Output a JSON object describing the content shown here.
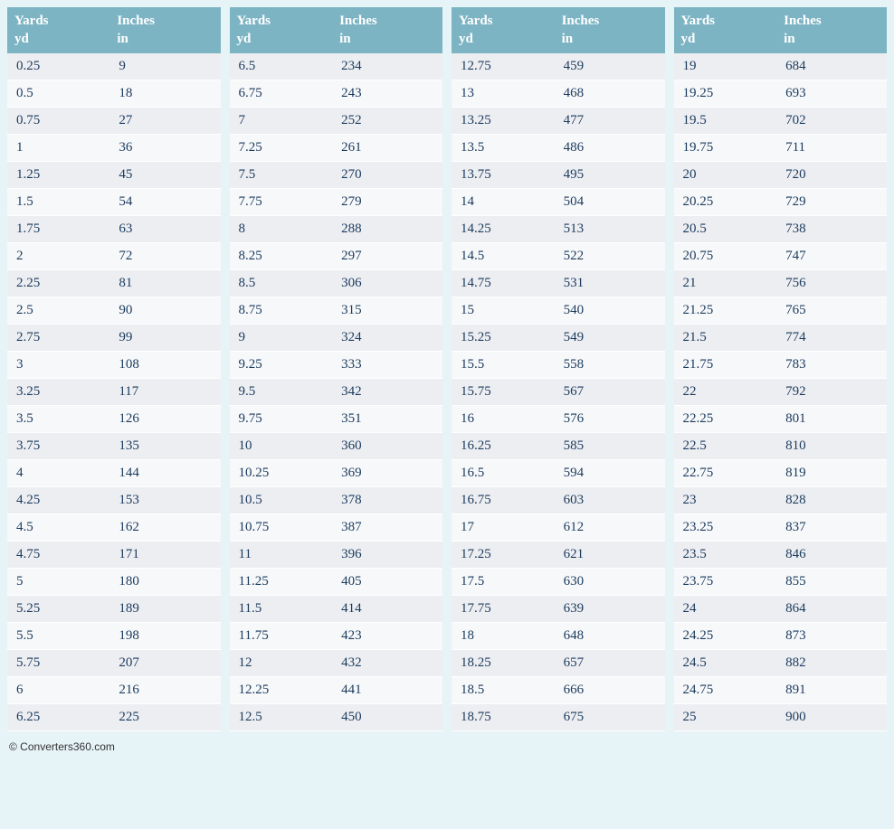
{
  "page": {
    "background_color": "#e6f3f7",
    "header_bg_color": "#7db4c4",
    "header_text_color": "#ffffff",
    "row_colors": [
      "#edeef2",
      "#f7f8fa"
    ],
    "cell_text_color": "#1a3a5c",
    "font_family": "Georgia, serif",
    "cell_fontsize": 15,
    "header_fontsize": 15
  },
  "columns": [
    {
      "name": "Yards",
      "abbr": "yd"
    },
    {
      "name": "Inches",
      "abbr": "in"
    }
  ],
  "tables": [
    {
      "rows": [
        [
          "0.25",
          "9"
        ],
        [
          "0.5",
          "18"
        ],
        [
          "0.75",
          "27"
        ],
        [
          "1",
          "36"
        ],
        [
          "1.25",
          "45"
        ],
        [
          "1.5",
          "54"
        ],
        [
          "1.75",
          "63"
        ],
        [
          "2",
          "72"
        ],
        [
          "2.25",
          "81"
        ],
        [
          "2.5",
          "90"
        ],
        [
          "2.75",
          "99"
        ],
        [
          "3",
          "108"
        ],
        [
          "3.25",
          "117"
        ],
        [
          "3.5",
          "126"
        ],
        [
          "3.75",
          "135"
        ],
        [
          "4",
          "144"
        ],
        [
          "4.25",
          "153"
        ],
        [
          "4.5",
          "162"
        ],
        [
          "4.75",
          "171"
        ],
        [
          "5",
          "180"
        ],
        [
          "5.25",
          "189"
        ],
        [
          "5.5",
          "198"
        ],
        [
          "5.75",
          "207"
        ],
        [
          "6",
          "216"
        ],
        [
          "6.25",
          "225"
        ]
      ]
    },
    {
      "rows": [
        [
          "6.5",
          "234"
        ],
        [
          "6.75",
          "243"
        ],
        [
          "7",
          "252"
        ],
        [
          "7.25",
          "261"
        ],
        [
          "7.5",
          "270"
        ],
        [
          "7.75",
          "279"
        ],
        [
          "8",
          "288"
        ],
        [
          "8.25",
          "297"
        ],
        [
          "8.5",
          "306"
        ],
        [
          "8.75",
          "315"
        ],
        [
          "9",
          "324"
        ],
        [
          "9.25",
          "333"
        ],
        [
          "9.5",
          "342"
        ],
        [
          "9.75",
          "351"
        ],
        [
          "10",
          "360"
        ],
        [
          "10.25",
          "369"
        ],
        [
          "10.5",
          "378"
        ],
        [
          "10.75",
          "387"
        ],
        [
          "11",
          "396"
        ],
        [
          "11.25",
          "405"
        ],
        [
          "11.5",
          "414"
        ],
        [
          "11.75",
          "423"
        ],
        [
          "12",
          "432"
        ],
        [
          "12.25",
          "441"
        ],
        [
          "12.5",
          "450"
        ]
      ]
    },
    {
      "rows": [
        [
          "12.75",
          "459"
        ],
        [
          "13",
          "468"
        ],
        [
          "13.25",
          "477"
        ],
        [
          "13.5",
          "486"
        ],
        [
          "13.75",
          "495"
        ],
        [
          "14",
          "504"
        ],
        [
          "14.25",
          "513"
        ],
        [
          "14.5",
          "522"
        ],
        [
          "14.75",
          "531"
        ],
        [
          "15",
          "540"
        ],
        [
          "15.25",
          "549"
        ],
        [
          "15.5",
          "558"
        ],
        [
          "15.75",
          "567"
        ],
        [
          "16",
          "576"
        ],
        [
          "16.25",
          "585"
        ],
        [
          "16.5",
          "594"
        ],
        [
          "16.75",
          "603"
        ],
        [
          "17",
          "612"
        ],
        [
          "17.25",
          "621"
        ],
        [
          "17.5",
          "630"
        ],
        [
          "17.75",
          "639"
        ],
        [
          "18",
          "648"
        ],
        [
          "18.25",
          "657"
        ],
        [
          "18.5",
          "666"
        ],
        [
          "18.75",
          "675"
        ]
      ]
    },
    {
      "rows": [
        [
          "19",
          "684"
        ],
        [
          "19.25",
          "693"
        ],
        [
          "19.5",
          "702"
        ],
        [
          "19.75",
          "711"
        ],
        [
          "20",
          "720"
        ],
        [
          "20.25",
          "729"
        ],
        [
          "20.5",
          "738"
        ],
        [
          "20.75",
          "747"
        ],
        [
          "21",
          "756"
        ],
        [
          "21.25",
          "765"
        ],
        [
          "21.5",
          "774"
        ],
        [
          "21.75",
          "783"
        ],
        [
          "22",
          "792"
        ],
        [
          "22.25",
          "801"
        ],
        [
          "22.5",
          "810"
        ],
        [
          "22.75",
          "819"
        ],
        [
          "23",
          "828"
        ],
        [
          "23.25",
          "837"
        ],
        [
          "23.5",
          "846"
        ],
        [
          "23.75",
          "855"
        ],
        [
          "24",
          "864"
        ],
        [
          "24.25",
          "873"
        ],
        [
          "24.5",
          "882"
        ],
        [
          "24.75",
          "891"
        ],
        [
          "25",
          "900"
        ]
      ]
    }
  ],
  "copyright": "© Converters360.com"
}
